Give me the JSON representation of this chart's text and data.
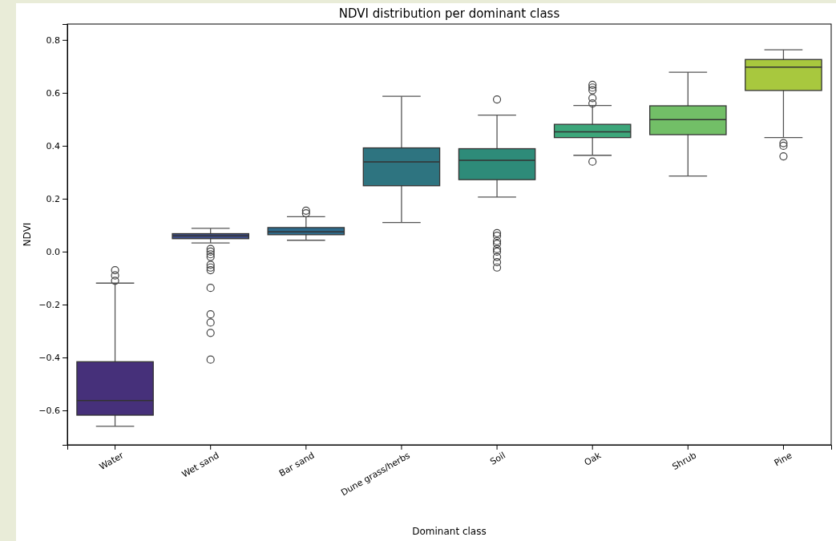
{
  "chart_data": {
    "type": "box",
    "title": "NDVI distribution per dominant class",
    "xlabel": "Dominant class",
    "ylabel": "NDVI",
    "categories": [
      "Water",
      "Wet sand",
      "Bar sand",
      "Dune grass/herbs",
      "Soil",
      "Oak",
      "Shrub",
      "Pine"
    ],
    "colors": [
      "#46307a",
      "#3d4d87",
      "#2e6b8c",
      "#2e7480",
      "#2e8b79",
      "#3ca67a",
      "#72bf67",
      "#a8c83e"
    ],
    "ylim": [
      -0.73,
      0.86
    ],
    "yticks": [
      {
        "value": -0.6,
        "label": "−0.6"
      },
      {
        "value": -0.4,
        "label": "−0.4"
      },
      {
        "value": -0.2,
        "label": "−0.2"
      },
      {
        "value": 0,
        "label": "0.0"
      },
      {
        "value": 0.2,
        "label": "0.2"
      },
      {
        "value": 0.4,
        "label": "0.4"
      },
      {
        "value": 0.6,
        "label": "0.6"
      },
      {
        "value": 0.8,
        "label": "0.8"
      }
    ],
    "boxes": [
      {
        "low": -0.66,
        "q1": -0.618,
        "median": -0.563,
        "q3": -0.416,
        "high": -0.119,
        "outliers": [
          -0.07,
          -0.09,
          -0.11
        ]
      },
      {
        "low": 0.033,
        "q1": 0.049,
        "median": 0.06,
        "q3": 0.068,
        "high": 0.088,
        "outliers": [
          0.01,
          0,
          -0.01,
          -0.02,
          -0.05,
          -0.06,
          -0.07,
          -0.137,
          -0.237,
          -0.268,
          -0.307,
          -0.408
        ]
      },
      {
        "low": 0.043,
        "q1": 0.064,
        "median": 0.075,
        "q3": 0.091,
        "high": 0.132,
        "outliers": [
          0.145,
          0.155
        ]
      },
      {
        "low": 0.11,
        "q1": 0.249,
        "median": 0.339,
        "q3": 0.392,
        "high": 0.587
      },
      {
        "low": 0.206,
        "q1": 0.272,
        "median": 0.345,
        "q3": 0.389,
        "high": 0.516,
        "outliers": [
          0.575,
          0.07,
          0.06,
          0.04,
          0.03,
          0.01,
          0,
          -0.02,
          -0.04,
          -0.06
        ]
      },
      {
        "low": 0.364,
        "q1": 0.431,
        "median": 0.453,
        "q3": 0.481,
        "high": 0.552,
        "outliers": [
          0.56,
          0.58,
          0.61,
          0.62,
          0.63,
          0.34
        ]
      },
      {
        "low": 0.286,
        "q1": 0.442,
        "median": 0.499,
        "q3": 0.551,
        "high": 0.678
      },
      {
        "low": 0.431,
        "q1": 0.609,
        "median": 0.697,
        "q3": 0.726,
        "high": 0.763,
        "outliers": [
          0.41,
          0.4,
          0.36
        ]
      }
    ]
  }
}
